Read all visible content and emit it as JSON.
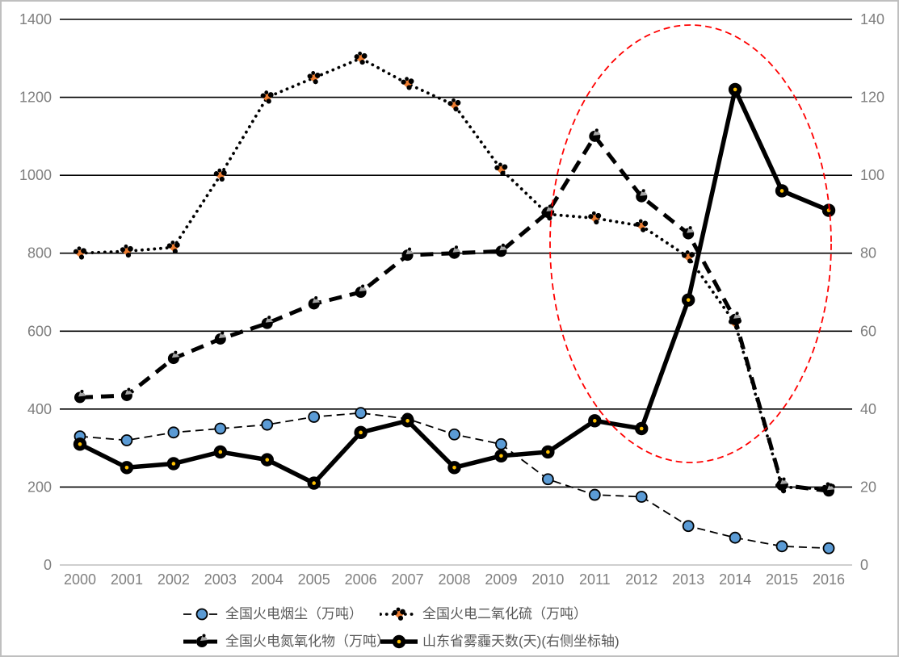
{
  "chart_data": {
    "type": "line",
    "x_categories": [
      "2000",
      "2001",
      "2002",
      "2003",
      "2004",
      "2005",
      "2006",
      "2007",
      "2008",
      "2009",
      "2010",
      "2011",
      "2012",
      "2013",
      "2014",
      "2015",
      "2016"
    ],
    "left_axis": {
      "range": [
        0,
        1400
      ],
      "ticks": [
        0,
        200,
        400,
        600,
        800,
        1000,
        1200,
        1400
      ]
    },
    "right_axis": {
      "range": [
        0,
        140
      ],
      "ticks": [
        0,
        20,
        40,
        60,
        80,
        100,
        120,
        140
      ]
    },
    "series": [
      {
        "key": "smoke_dust",
        "name": "全国火电烟尘（万吨）",
        "axis": "left",
        "line_style": "thin-dashed",
        "marker": "blue-circle",
        "values": [
          330,
          320,
          340,
          350,
          360,
          380,
          390,
          375,
          335,
          310,
          220,
          180,
          175,
          100,
          70,
          48,
          43
        ]
      },
      {
        "key": "so2",
        "name": "全国火电二氧化硫（万吨）",
        "axis": "left",
        "line_style": "dotted",
        "marker": "orange-pinwheel",
        "values": [
          800,
          805,
          815,
          1000,
          1200,
          1250,
          1300,
          1235,
          1180,
          1015,
          900,
          890,
          870,
          790,
          620,
          200,
          195
        ]
      },
      {
        "key": "nox",
        "name": "全国火电氮氧化物（万吨）",
        "axis": "left",
        "line_style": "thick-dashed",
        "marker": "black-gray-circle",
        "values": [
          430,
          435,
          530,
          580,
          620,
          670,
          700,
          795,
          800,
          805,
          905,
          1100,
          945,
          850,
          630,
          205,
          190
        ]
      },
      {
        "key": "haze_days",
        "name": "山东省雾霾天数(天)(右侧坐标轴)",
        "axis": "right",
        "line_style": "thick-solid",
        "marker": "black-yellow-circle",
        "values": [
          31,
          25,
          26,
          29,
          27,
          21,
          34,
          37,
          25,
          28,
          29,
          37,
          35,
          68,
          122,
          96,
          91
        ]
      }
    ],
    "annotation_ellipse": {
      "shape": "ellipse",
      "style": "dashed",
      "color": "#FF0000",
      "highlights": "2011-2016 region"
    },
    "grid": "horizontal-on",
    "legend_position": "bottom",
    "colors": {
      "line_black": "#000000",
      "marker_blue": "#5B9BD5",
      "marker_orange": "#ED7D31",
      "marker_yellow": "#FFC000",
      "marker_gray": "#A6A6A6",
      "axis_text": "#7F7F7F",
      "legend_text": "#595959",
      "annotation_red": "#FF0000",
      "zero_axis_line": "#BFBFBF",
      "frame_border": "#BFBFBF"
    }
  },
  "legend": {
    "items": [
      {
        "label": "全国火电烟尘（万吨）",
        "series_key": "smoke_dust"
      },
      {
        "label": "全国火电二氧化硫（万吨）",
        "series_key": "so2"
      },
      {
        "label": "全国火电氮氧化物（万吨）",
        "series_key": "nox"
      },
      {
        "label": "山东省雾霾天数(天)(右侧坐标轴)",
        "series_key": "haze_days"
      }
    ]
  }
}
